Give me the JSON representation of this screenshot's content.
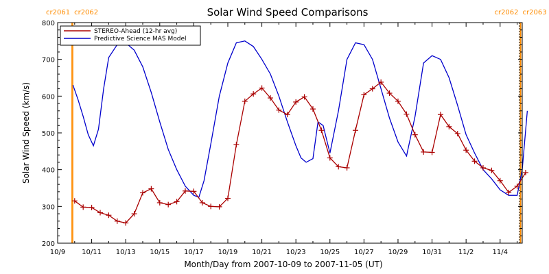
{
  "chart_data": {
    "type": "line",
    "title": "Solar Wind Speed Comparisons",
    "xlabel": "Month/Day from 2007-10-09 to 2007-11-05 (UT)",
    "ylabel": "Solar Wind Speed (km/s)",
    "ylim": [
      200,
      800
    ],
    "xlim": [
      0,
      27.3
    ],
    "yticks": [
      200,
      300,
      400,
      500,
      600,
      700,
      800
    ],
    "xticks": [
      {
        "day": 0,
        "label": "10/9"
      },
      {
        "day": 2,
        "label": "10/11"
      },
      {
        "day": 4,
        "label": "10/13"
      },
      {
        "day": 6,
        "label": "10/15"
      },
      {
        "day": 8,
        "label": "10/17"
      },
      {
        "day": 10,
        "label": "10/19"
      },
      {
        "day": 12,
        "label": "10/21"
      },
      {
        "day": 14,
        "label": "10/23"
      },
      {
        "day": 16,
        "label": "10/25"
      },
      {
        "day": 18,
        "label": "10/27"
      },
      {
        "day": 20,
        "label": "10/29"
      },
      {
        "day": 22,
        "label": "10/31"
      },
      {
        "day": 24,
        "label": "11/2"
      },
      {
        "day": 26,
        "label": "11/4"
      }
    ],
    "legend_placement": "top-left",
    "rotation_markers": [
      {
        "day": 0.85,
        "label_left": "cr2061",
        "label_right": "cr2062",
        "color": "#ff8c00"
      },
      {
        "day": 27.2,
        "label_left": "cr2062",
        "label_right": "cr2063",
        "color": "#ff8c00"
      }
    ],
    "series": [
      {
        "name": "STEREO-Ahead (12-hr avg)",
        "color": "#aa0000",
        "marker": "plus",
        "x": [
          1.0,
          1.5,
          2.0,
          2.5,
          3.0,
          3.5,
          4.0,
          4.5,
          5.0,
          5.5,
          6.0,
          6.5,
          7.0,
          7.5,
          8.0,
          8.5,
          9.0,
          9.5,
          10.0,
          10.5,
          11.0,
          11.5,
          12.0,
          12.5,
          13.0,
          13.5,
          14.0,
          14.5,
          15.0,
          15.5,
          16.0,
          16.5,
          17.0,
          17.5,
          18.0,
          18.5,
          19.0,
          19.5,
          20.0,
          20.5,
          21.0,
          21.5,
          22.0,
          22.5,
          23.0,
          23.5,
          24.0,
          24.5,
          25.0,
          25.5,
          26.0,
          26.5,
          27.0,
          27.5
        ],
        "y": [
          315,
          298,
          297,
          283,
          276,
          260,
          255,
          280,
          337,
          348,
          310,
          305,
          313,
          342,
          341,
          310,
          300,
          299,
          322,
          468,
          586,
          606,
          622,
          595,
          562,
          550,
          584,
          598,
          565,
          507,
          432,
          408,
          405,
          507,
          604,
          620,
          638,
          608,
          586,
          551,
          495,
          448,
          447,
          550,
          517,
          498,
          453,
          423,
          405,
          398,
          370,
          338,
          355,
          392
        ]
      },
      {
        "name": "Predictive Science MAS Model",
        "color": "#0000cc",
        "marker": "none",
        "x": [
          0.9,
          1.2,
          1.5,
          1.8,
          2.1,
          2.4,
          2.7,
          3.0,
          3.5,
          4.0,
          4.5,
          5.0,
          5.5,
          6.0,
          6.5,
          7.0,
          7.5,
          8.0,
          8.3,
          8.6,
          9.0,
          9.5,
          10.0,
          10.5,
          11.0,
          11.5,
          12.0,
          12.5,
          13.0,
          13.5,
          14.0,
          14.3,
          14.6,
          15.0,
          15.3,
          15.6,
          16.0,
          16.5,
          17.0,
          17.5,
          18.0,
          18.5,
          19.0,
          19.5,
          20.0,
          20.5,
          21.0,
          21.5,
          22.0,
          22.5,
          23.0,
          23.5,
          24.0,
          24.5,
          25.0,
          25.5,
          26.0,
          26.5,
          27.0,
          27.3,
          27.6
        ],
        "y": [
          630,
          590,
          545,
          495,
          465,
          510,
          620,
          705,
          740,
          745,
          725,
          680,
          610,
          530,
          455,
          400,
          355,
          330,
          325,
          370,
          470,
          600,
          690,
          745,
          750,
          735,
          700,
          660,
          600,
          530,
          465,
          432,
          420,
          430,
          530,
          520,
          445,
          560,
          700,
          745,
          740,
          700,
          620,
          540,
          475,
          437,
          545,
          690,
          710,
          700,
          650,
          575,
          495,
          445,
          400,
          375,
          345,
          330,
          330,
          400,
          560
        ]
      }
    ]
  }
}
